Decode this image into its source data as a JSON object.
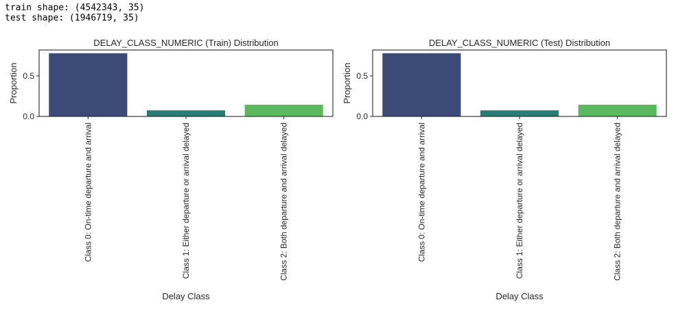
{
  "console": {
    "lines": [
      "train shape: (4542343, 35)",
      "test shape: (1946719, 35)"
    ]
  },
  "chart_data": [
    {
      "type": "bar",
      "title": "DELAY_CLASS_NUMERIC (Train) Distribution",
      "xlabel": "Delay Class",
      "ylabel": "Proportion",
      "categories": [
        "Class 0: On-time departure and arrival",
        "Class 1: Either departure or arrival delayed",
        "Class 2: Both departure and arrival delayed"
      ],
      "values": [
        0.78,
        0.075,
        0.145
      ],
      "colors": [
        "#3b4a76",
        "#2a7c74",
        "#5cb85e"
      ],
      "yticks": [
        0.0,
        0.5
      ],
      "ytick_labels": [
        "0.0",
        "0.5"
      ],
      "ylim": [
        0,
        0.82
      ],
      "grid": false
    },
    {
      "type": "bar",
      "title": "DELAY_CLASS_NUMERIC (Test) Distribution",
      "xlabel": "Delay Class",
      "ylabel": "Proportion",
      "categories": [
        "Class 0: On-time departure and arrival",
        "Class 1: Either departure or arrival delayed",
        "Class 2: Both departure and arrival delayed"
      ],
      "values": [
        0.78,
        0.075,
        0.145
      ],
      "colors": [
        "#3b4a76",
        "#2a7c74",
        "#5cb85e"
      ],
      "yticks": [
        0.0,
        0.5
      ],
      "ytick_labels": [
        "0.0",
        "0.5"
      ],
      "ylim": [
        0,
        0.82
      ],
      "grid": false
    }
  ]
}
